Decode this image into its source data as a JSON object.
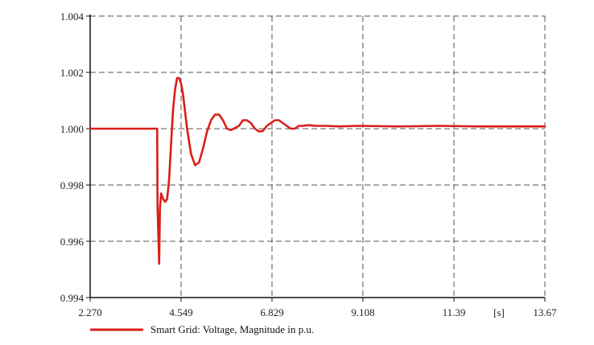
{
  "chart_data": {
    "type": "line",
    "title": "",
    "xlabel": "",
    "x_unit": "[s]",
    "ylabel": "",
    "xlim": [
      2.27,
      13.67
    ],
    "ylim": [
      0.994,
      1.004
    ],
    "x_ticks": [
      "2.270",
      "4.549",
      "6.829",
      "9.108",
      "11.39",
      "13.67"
    ],
    "y_ticks": [
      "1.004",
      "1.002",
      "1.000",
      "0.998",
      "0.996",
      "0.994"
    ],
    "grid": true,
    "legend": "bottom-left",
    "series": [
      {
        "name": "Smart Grid: Voltage, Magnitude in p.u.",
        "color": "#d91e18",
        "x": [
          2.27,
          3.95,
          3.96,
          4.0,
          4.02,
          4.05,
          4.1,
          4.15,
          4.2,
          4.25,
          4.3,
          4.35,
          4.4,
          4.45,
          4.5,
          4.55,
          4.6,
          4.65,
          4.7,
          4.8,
          4.9,
          5.0,
          5.1,
          5.2,
          5.3,
          5.4,
          5.5,
          5.6,
          5.7,
          5.8,
          5.9,
          6.0,
          6.1,
          6.2,
          6.3,
          6.4,
          6.5,
          6.6,
          6.7,
          6.8,
          6.9,
          7.0,
          7.1,
          7.2,
          7.3,
          7.4,
          7.5,
          7.6,
          7.7,
          7.8,
          7.9,
          8.0,
          8.2,
          8.5,
          9.0,
          10.0,
          11.0,
          12.0,
          13.0,
          13.67
        ],
        "values": [
          1.0,
          1.0,
          0.9972,
          0.9952,
          0.9972,
          0.9977,
          0.9975,
          0.9974,
          0.9975,
          0.9982,
          0.9995,
          1.0007,
          1.0014,
          1.0018,
          1.0018,
          1.0016,
          1.0012,
          1.0006,
          1.0,
          0.9991,
          0.9987,
          0.9988,
          0.9993,
          0.9999,
          1.0003,
          1.0005,
          1.0005,
          1.0003,
          1.0,
          0.99995,
          1.00002,
          1.0001,
          1.0003,
          1.0003,
          1.0002,
          1.0,
          0.9999,
          0.99992,
          1.0001,
          1.0002,
          1.0003,
          1.0003,
          1.0002,
          1.0001,
          1.0,
          1.0,
          1.0001,
          1.0001,
          1.00012,
          1.00012,
          1.0001,
          1.0001,
          1.0001,
          1.00008,
          1.0001,
          1.00008,
          1.0001,
          1.00008,
          1.00008,
          1.00008
        ]
      }
    ]
  }
}
